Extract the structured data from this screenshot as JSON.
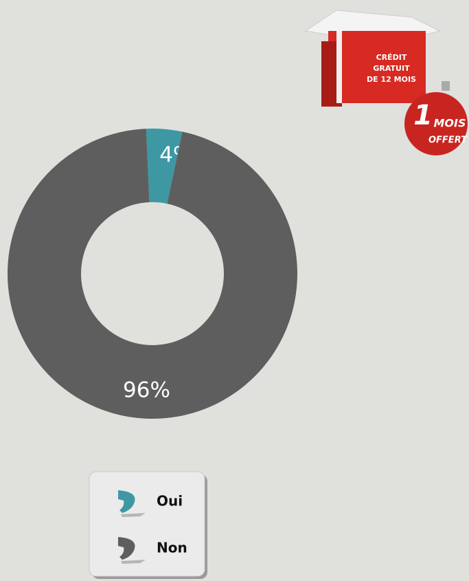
{
  "chart_data": {
    "type": "donut",
    "categories": [
      "Oui",
      "Non"
    ],
    "values": [
      4,
      96
    ],
    "value_labels": [
      "4%",
      "96%"
    ],
    "colors": [
      "#3e98a3",
      "#5e5e5e"
    ]
  },
  "promo": {
    "gift_lines": [
      "CRÉDIT",
      "GRATUIT",
      "DE 12 MOIS"
    ],
    "ornament_number": "1",
    "ornament_lines": [
      "MOIS",
      "OFFERT"
    ]
  }
}
